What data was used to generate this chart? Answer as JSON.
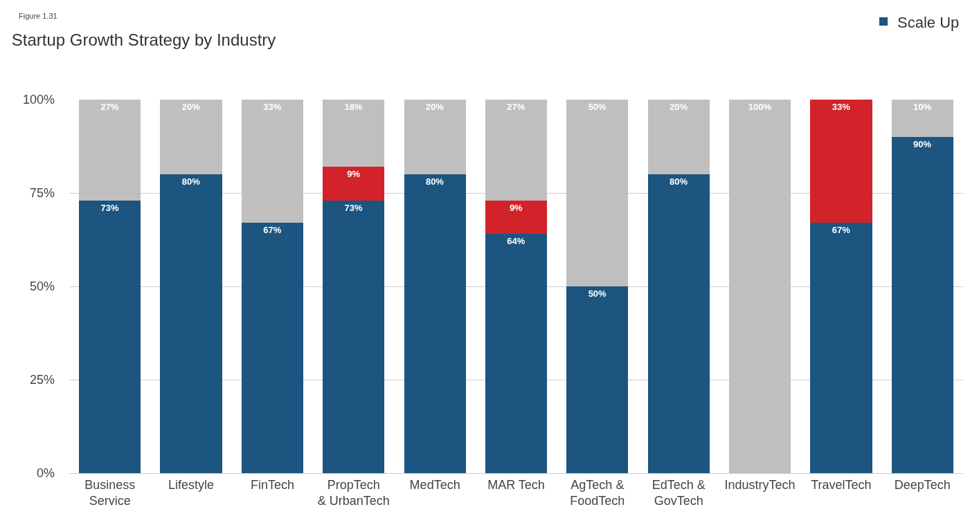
{
  "chart_data": {
    "type": "bar",
    "stacked": true,
    "title": "Startup Growth Strategy by Industry",
    "annotations": [
      "Figure 1.31"
    ],
    "categories": [
      "Business\nService",
      "Lifestyle",
      "FinTech",
      "PropTech\n& UrbanTech",
      "MedTech",
      "MAR Tech",
      "AgTech &\nFoodTech",
      "EdTech &\nGovTech",
      "IndustryTech",
      "TravelTech",
      "DeepTech"
    ],
    "series": [
      {
        "name": "Scale Up",
        "color": "#1b5580",
        "values": [
          73,
          80,
          67,
          73,
          80,
          64,
          50,
          80,
          0,
          67,
          90
        ],
        "value_labels": [
          "73%",
          "80%",
          "67%",
          "73%",
          "80%",
          "64%",
          "50%",
          "80%",
          null,
          "67%",
          "90%"
        ]
      },
      {
        "color": "#d2232a",
        "values": [
          0,
          0,
          0,
          9,
          0,
          9,
          0,
          0,
          0,
          33,
          0
        ],
        "value_labels": [
          null,
          null,
          null,
          "9%",
          null,
          "9%",
          null,
          null,
          null,
          "33%",
          null
        ]
      },
      {
        "color": "#bfbfbf",
        "values": [
          27,
          20,
          33,
          18,
          20,
          27,
          50,
          20,
          100,
          0,
          10
        ],
        "value_labels": [
          "27%",
          "20%",
          "33%",
          "18%",
          "20%",
          "27%",
          "50%",
          "20%",
          "100%",
          null,
          "10%"
        ]
      }
    ],
    "ylim": [
      0,
      100
    ],
    "yticks": [
      {
        "value": 0,
        "label": "0%"
      },
      {
        "value": 25,
        "label": "25%"
      },
      {
        "value": 50,
        "label": "50%"
      },
      {
        "value": 75,
        "label": "75%"
      },
      {
        "value": 100,
        "label": "100%"
      }
    ],
    "grid": "y",
    "legend": "top right"
  }
}
